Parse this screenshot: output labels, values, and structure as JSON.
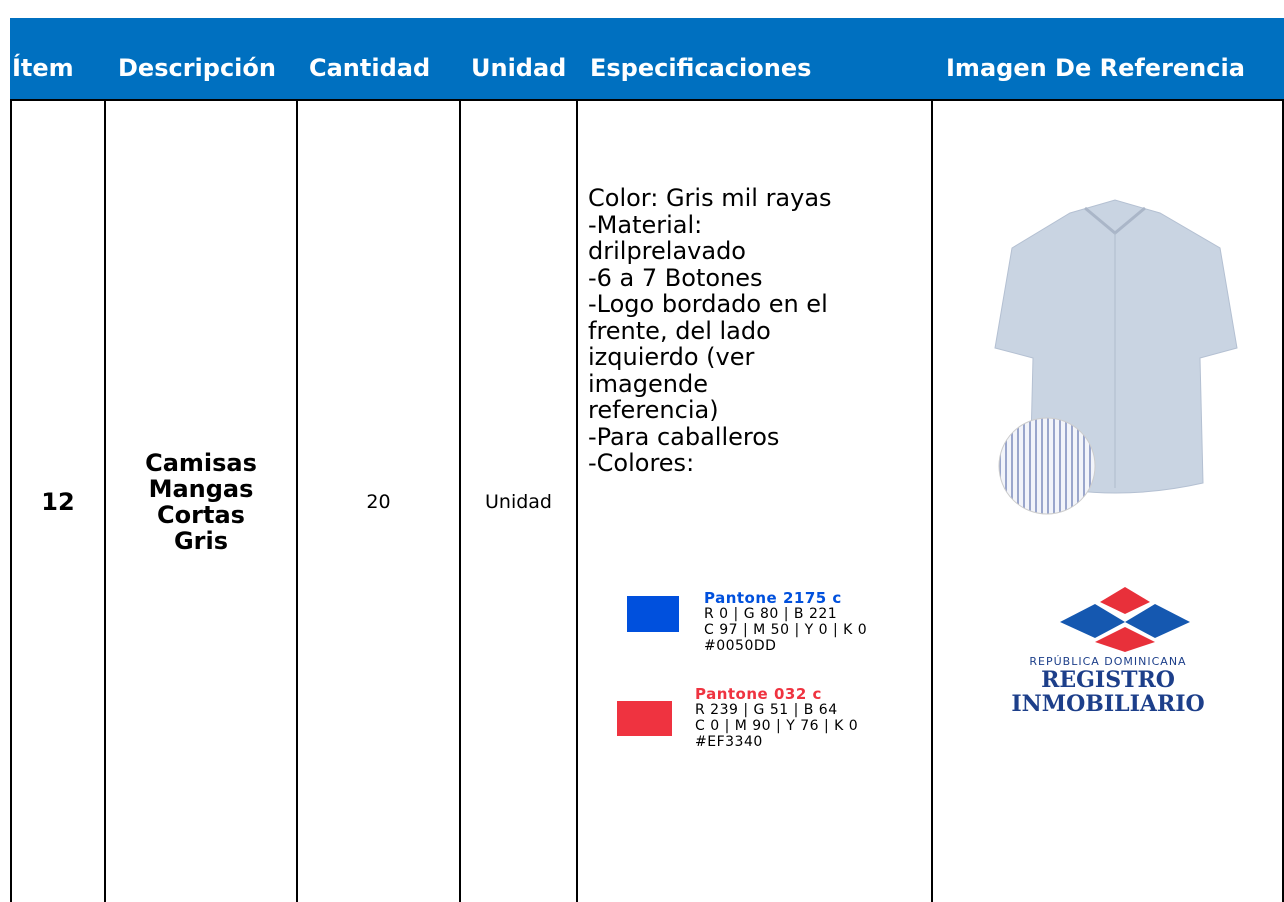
{
  "table": {
    "header": [
      "Ítem",
      "Descripción",
      "Cantidad",
      "Unidad",
      "Especificaciones",
      "Imagen De Referencia"
    ],
    "row": {
      "item": "12",
      "description": [
        "Camisas",
        "Mangas",
        "Cortas",
        "Gris"
      ],
      "quantity": "20",
      "unit": "Unidad",
      "specs": [
        "Color: Gris mil rayas",
        "-Material:",
        "drilprelavado",
        "-6 a 7 Botones",
        "-Logo bordado en el",
        "frente, del lado",
        "izquierdo (ver",
        "imagende",
        "referencia)",
        "-Para caballeros",
        "-Colores:"
      ],
      "swatches": [
        {
          "name": "Pantone 2175 c",
          "lines": [
            "R 0 | G 80 | B 221",
            "C 97 | M 50 | Y 0 | K 0",
            "#0050DD"
          ]
        },
        {
          "name": "Pantone 032 c",
          "lines": [
            "R 239 | G 51 | B 64",
            "C 0 | M 90 | Y 76 | K 0",
            "#EF3340"
          ]
        }
      ],
      "logo": [
        "REPÚBLICA DOMINICANA",
        "REGISTRO",
        "INMOBILIARIO"
      ]
    }
  }
}
